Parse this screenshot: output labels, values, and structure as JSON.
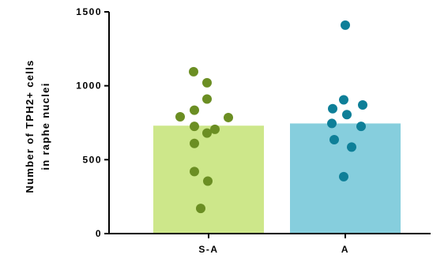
{
  "chart_data": {
    "type": "bar",
    "title": "",
    "xlabel": "",
    "ylabel_lines": [
      "Number of TPH2+ cells",
      "in raphe nuclei"
    ],
    "ylim": [
      0,
      1500
    ],
    "yticks": [
      0,
      500,
      1000,
      1500
    ],
    "categories": [
      "S-A",
      "A"
    ],
    "values": [
      730,
      745
    ],
    "bar_colors": [
      "#cde78a",
      "#86cedd"
    ],
    "point_colors": [
      "#6b8e23",
      "#0e7f98"
    ],
    "points": [
      [
        1095,
        1020,
        910,
        835,
        790,
        785,
        725,
        705,
        680,
        610,
        420,
        355,
        170
      ],
      [
        1410,
        905,
        870,
        845,
        805,
        745,
        725,
        635,
        585,
        385
      ]
    ],
    "grid": false
  }
}
